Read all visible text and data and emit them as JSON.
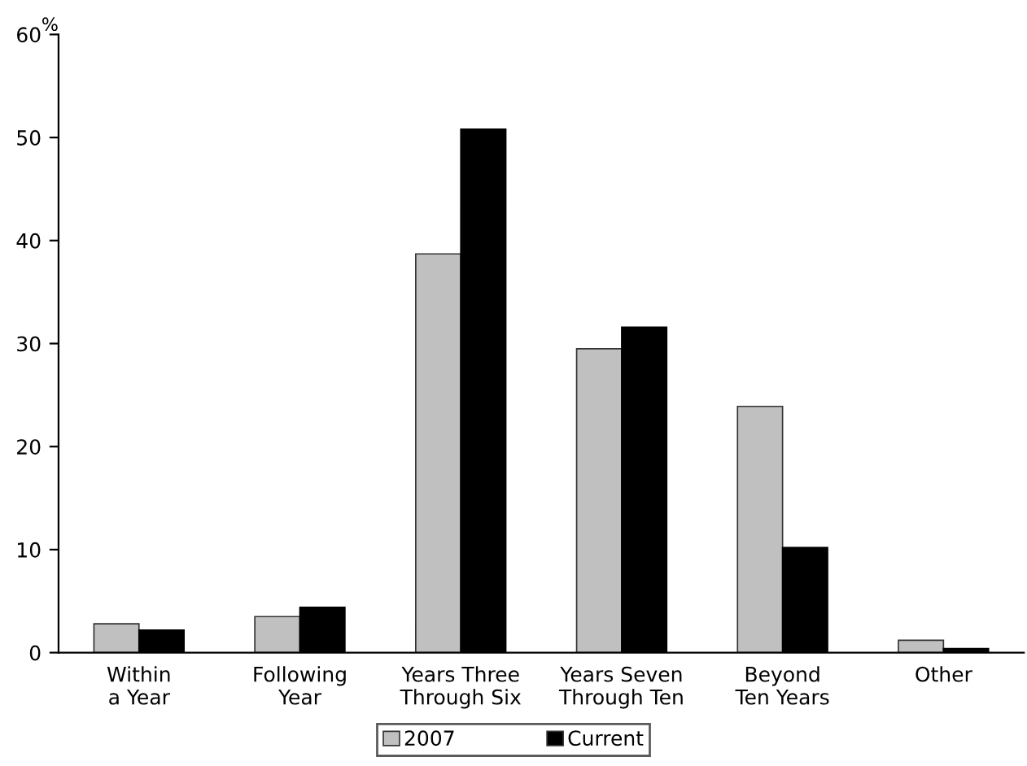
{
  "chart_data": {
    "type": "bar",
    "ylabel": "%",
    "categories": [
      "Within\na Year",
      "Following\nYear",
      "Years Three\nThrough Six",
      "Years Seven\nThrough Ten",
      "Beyond\nTen Years",
      "Other"
    ],
    "series": [
      {
        "name": "2007",
        "color": "#c0c0c0",
        "values": [
          2.8,
          3.5,
          38.7,
          29.5,
          23.9,
          1.2
        ]
      },
      {
        "name": "Current",
        "color": "#000000",
        "values": [
          2.2,
          4.4,
          50.8,
          31.6,
          10.2,
          0.4
        ]
      }
    ],
    "ylim": [
      0,
      60
    ],
    "yticks": [
      0,
      10,
      20,
      30,
      40,
      50,
      60
    ],
    "grid": false,
    "legend": "bottom"
  }
}
